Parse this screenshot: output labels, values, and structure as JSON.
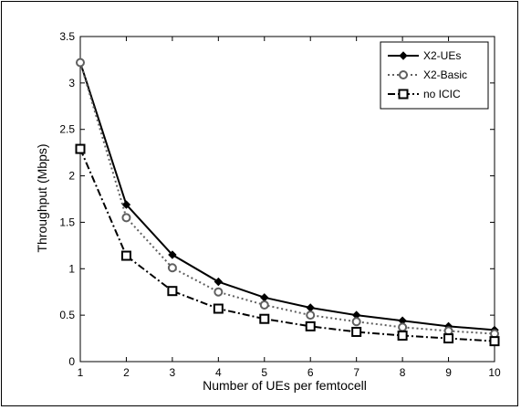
{
  "chart_data": {
    "type": "line",
    "title": "",
    "xlabel": "Number of UEs per femtocell",
    "ylabel": "Throughput (Mbps)",
    "xlim": [
      1,
      10
    ],
    "ylim": [
      0,
      3.5
    ],
    "x": [
      1,
      2,
      3,
      4,
      5,
      6,
      7,
      8,
      9,
      10
    ],
    "xticks": [
      "1",
      "2",
      "3",
      "4",
      "5",
      "6",
      "7",
      "8",
      "9",
      "10"
    ],
    "yticks": [
      "0",
      "0.5",
      "1",
      "1.5",
      "2",
      "2.5",
      "3",
      "3.5"
    ],
    "grid": false,
    "legend_position": "top-right",
    "series": [
      {
        "name": "X2-UEs",
        "line_style": "solid",
        "marker": "diamond",
        "color": "#000000",
        "values": [
          3.22,
          1.69,
          1.15,
          0.86,
          0.69,
          0.58,
          0.5,
          0.44,
          0.38,
          0.34
        ]
      },
      {
        "name": "X2-Basic",
        "line_style": "dotted",
        "marker": "circle",
        "color": "#606060",
        "values": [
          3.22,
          1.55,
          1.01,
          0.75,
          0.61,
          0.5,
          0.43,
          0.37,
          0.33,
          0.3
        ]
      },
      {
        "name": "no ICIC",
        "line_style": "dashdot",
        "marker": "square",
        "color": "#000000",
        "values": [
          2.29,
          1.14,
          0.76,
          0.57,
          0.46,
          0.38,
          0.32,
          0.28,
          0.25,
          0.22
        ]
      }
    ]
  }
}
